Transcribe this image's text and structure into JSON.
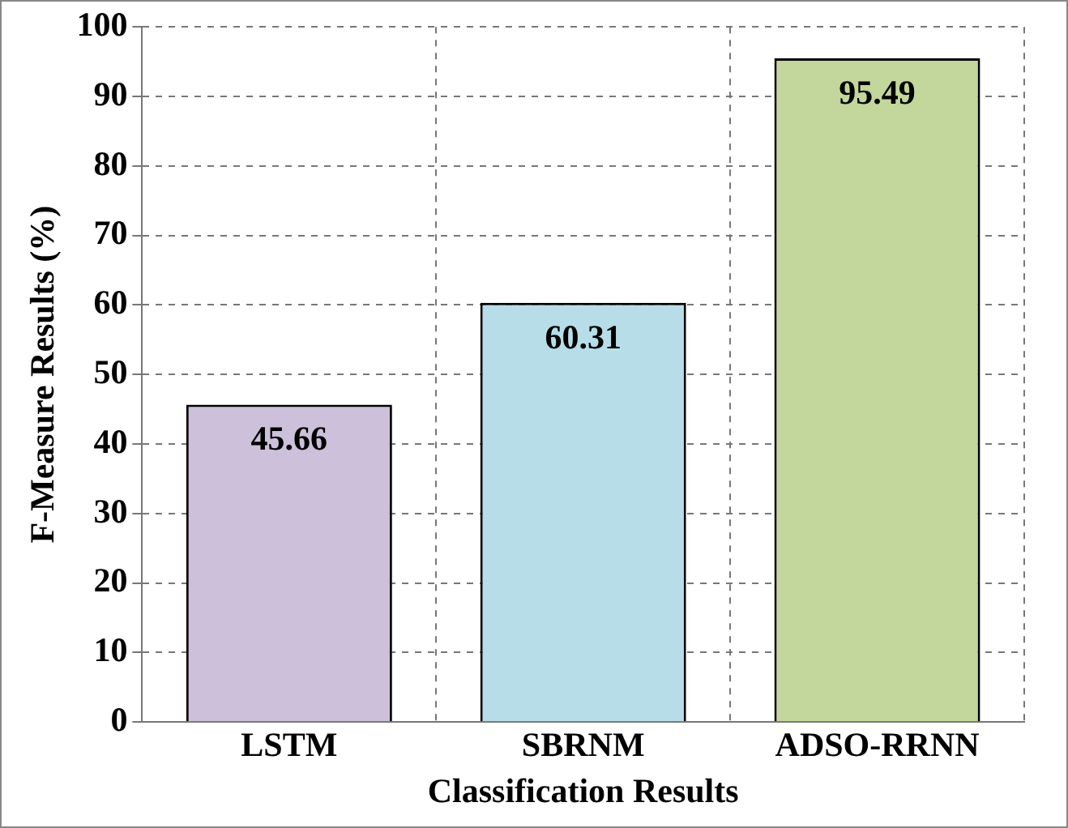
{
  "chart_data": {
    "type": "bar",
    "xlabel": "Classification Results",
    "ylabel": "F-Measure Results (%)",
    "categories": [
      "LSTM",
      "SBRNM",
      "ADSO-RRNN"
    ],
    "values": [
      45.66,
      60.31,
      95.49
    ],
    "colors": [
      "#ccc0da",
      "#b7dee8",
      "#c3d69b"
    ],
    "ylim": [
      0,
      100
    ],
    "yticks": [
      0,
      10,
      20,
      30,
      40,
      50,
      60,
      70,
      80,
      90,
      100
    ],
    "grid": true,
    "data_labels": true
  }
}
